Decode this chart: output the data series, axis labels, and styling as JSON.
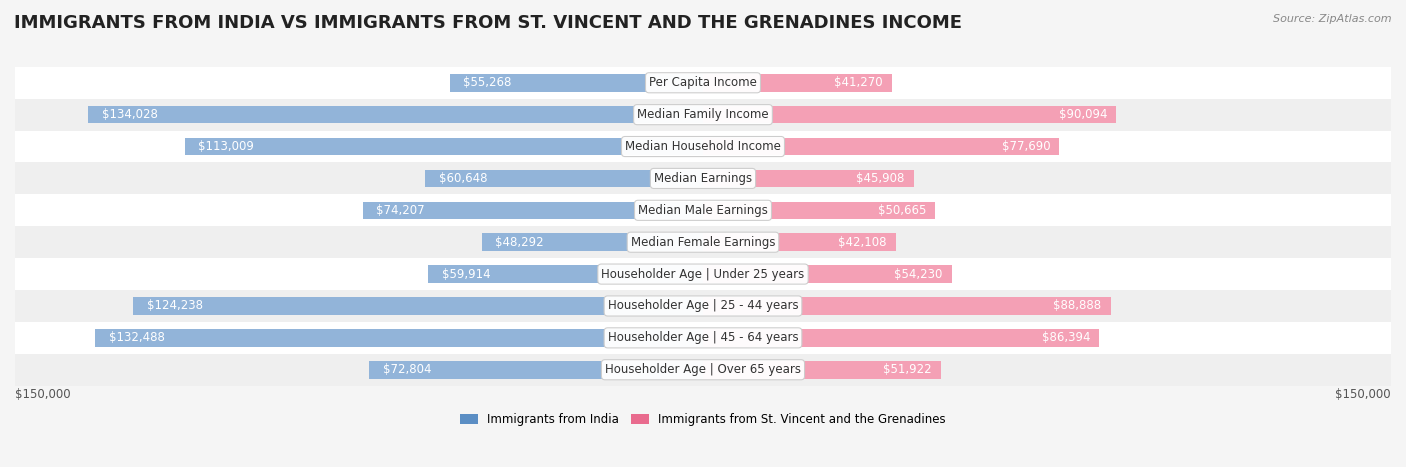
{
  "title": "IMMIGRANTS FROM INDIA VS IMMIGRANTS FROM ST. VINCENT AND THE GRENADINES INCOME",
  "source": "Source: ZipAtlas.com",
  "categories": [
    "Per Capita Income",
    "Median Family Income",
    "Median Household Income",
    "Median Earnings",
    "Median Male Earnings",
    "Median Female Earnings",
    "Householder Age | Under 25 years",
    "Householder Age | 25 - 44 years",
    "Householder Age | 45 - 64 years",
    "Householder Age | Over 65 years"
  ],
  "india_values": [
    55268,
    134028,
    113009,
    60648,
    74207,
    48292,
    59914,
    124238,
    132488,
    72804
  ],
  "svg_values": [
    41270,
    90094,
    77690,
    45908,
    50665,
    42108,
    54230,
    88888,
    86394,
    51922
  ],
  "india_labels": [
    "$55,268",
    "$134,028",
    "$113,009",
    "$60,648",
    "$74,207",
    "$48,292",
    "$59,914",
    "$124,238",
    "$132,488",
    "$72,804"
  ],
  "svg_labels": [
    "$41,270",
    "$90,094",
    "$77,690",
    "$45,908",
    "$50,665",
    "$42,108",
    "$54,230",
    "$88,888",
    "$86,394",
    "$51,922"
  ],
  "india_color": "#92b4d9",
  "svg_color": "#f4a0b5",
  "india_color_dark": "#5b8ec4",
  "svg_color_dark": "#e96b8e",
  "max_value": 150000,
  "bg_color": "#f5f5f5",
  "legend_india": "Immigrants from India",
  "legend_svg": "Immigrants from St. Vincent and the Grenadines",
  "title_fontsize": 13,
  "label_fontsize": 8.5,
  "category_fontsize": 8.5,
  "inside_label_threshold": 40000
}
